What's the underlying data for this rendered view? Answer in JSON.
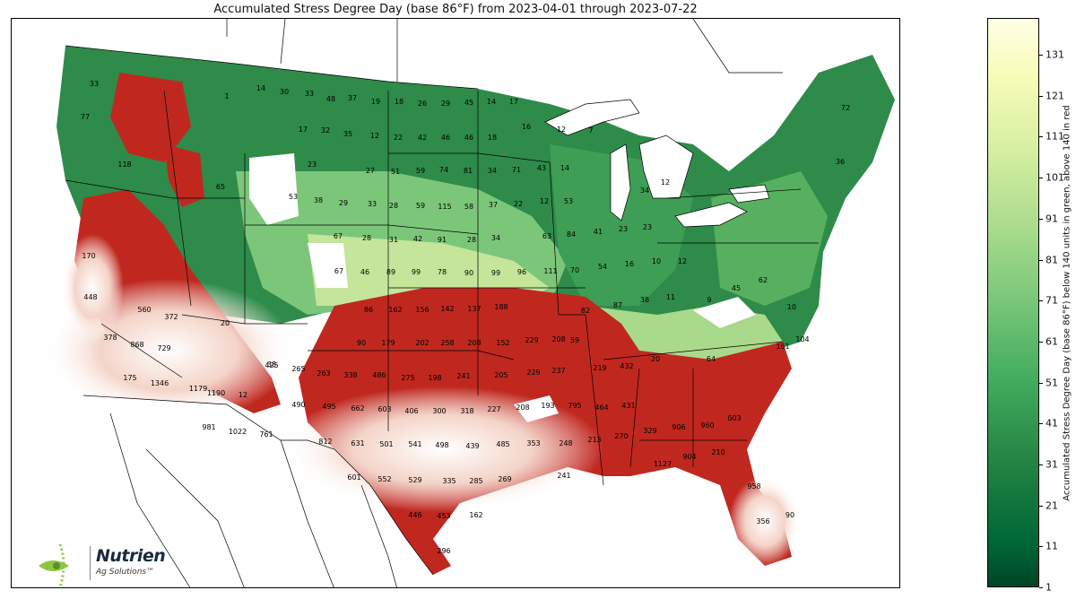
{
  "title": "Accumulated Stress Degree Day (base 86°F) from 2023-04-01 through 2023-07-22",
  "colorbar": {
    "label": "Accumulated Stress Degree Day (base 86°F) below 140 units in green, above 140 in red",
    "ticks": [
      "1",
      "11",
      "21",
      "31",
      "41",
      "51",
      "61",
      "71",
      "81",
      "91",
      "101",
      "111",
      "121",
      "131"
    ],
    "min": 1,
    "max": 140,
    "colors": [
      "#004529",
      "#006837",
      "#238443",
      "#41ab5d",
      "#78c679",
      "#addd8e",
      "#d9f0a3",
      "#f7fcb9",
      "#ffffe5"
    ]
  },
  "logo": {
    "brand": "Nutrien",
    "tagline": "Ag Solutions™"
  },
  "map_values": [
    "33",
    "77",
    "118",
    "65",
    "170",
    "448",
    "560",
    "372",
    "378",
    "868",
    "729",
    "175",
    "1346",
    "1179",
    "1190",
    "1",
    "14",
    "30",
    "33",
    "48",
    "37",
    "19",
    "18",
    "26",
    "29",
    "45",
    "14",
    "17",
    "17",
    "32",
    "35",
    "12",
    "22",
    "42",
    "46",
    "46",
    "18",
    "16",
    "12",
    "7",
    "23",
    "27",
    "51",
    "59",
    "74",
    "81",
    "34",
    "71",
    "43",
    "14",
    "53",
    "38",
    "29",
    "33",
    "28",
    "59",
    "115",
    "58",
    "37",
    "22",
    "12",
    "53",
    "34",
    "12",
    "67",
    "28",
    "31",
    "42",
    "91",
    "28",
    "34",
    "63",
    "84",
    "41",
    "23",
    "23",
    "67",
    "46",
    "89",
    "99",
    "78",
    "90",
    "99",
    "96",
    "111",
    "70",
    "54",
    "16",
    "10",
    "12",
    "86",
    "162",
    "156",
    "142",
    "137",
    "188",
    "82",
    "87",
    "38",
    "11",
    "9",
    "45",
    "62",
    "10",
    "90",
    "179",
    "202",
    "258",
    "208",
    "152",
    "229",
    "208",
    "59",
    "20",
    "64",
    "161",
    "104",
    "425",
    "265",
    "263",
    "338",
    "486",
    "275",
    "198",
    "241",
    "205",
    "229",
    "237",
    "219",
    "432",
    "490",
    "495",
    "662",
    "603",
    "406",
    "300",
    "318",
    "227",
    "208",
    "193",
    "795",
    "464",
    "431",
    "981",
    "1022",
    "761",
    "812",
    "631",
    "501",
    "541",
    "498",
    "439",
    "485",
    "353",
    "248",
    "213",
    "270",
    "329",
    "906",
    "960",
    "603",
    "601",
    "552",
    "529",
    "335",
    "285",
    "269",
    "241",
    "1127",
    "904",
    "210",
    "446",
    "453",
    "162",
    "958",
    "356",
    "90",
    "296",
    "12",
    "38",
    "20",
    "72",
    "36"
  ]
}
